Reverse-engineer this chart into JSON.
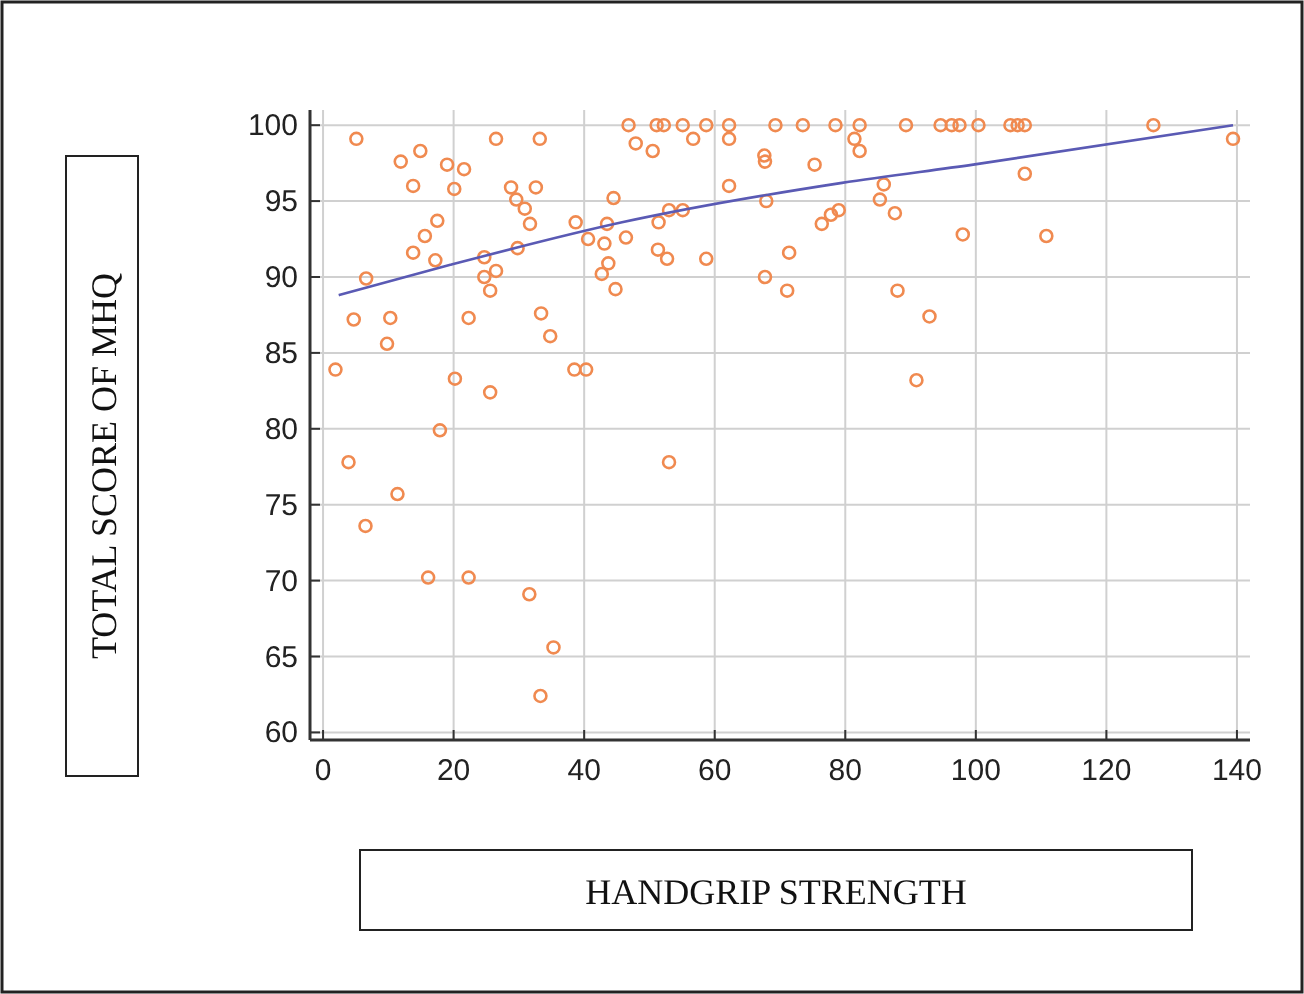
{
  "chart_data": {
    "type": "scatter",
    "xlabel": "HANDGRIP STRENGTH",
    "ylabel": "TOTAL SCORE OF MHQ",
    "xlim": [
      -2,
      142
    ],
    "ylim": [
      59.5,
      101
    ],
    "xticks": [
      0,
      20,
      40,
      60,
      80,
      100,
      120,
      140
    ],
    "yticks": [
      60,
      65,
      70,
      75,
      80,
      85,
      90,
      95,
      100
    ],
    "grid": true,
    "series": [
      {
        "marker": "circle",
        "color": "#f08a50",
        "x": [
          5.1,
          11.9,
          14.9,
          19.0,
          21.6,
          13.8,
          20.1,
          26.5,
          33.2,
          46.8,
          47.9,
          28.8,
          29.6,
          30.9,
          31.7,
          32.6,
          44.5,
          17.5,
          15.6,
          13.8,
          17.2,
          6.6,
          24.7,
          24.7,
          26.5,
          25.6,
          29.8,
          38.7,
          40.6,
          43.5,
          43.1,
          46.4,
          43.7,
          42.7,
          44.8,
          4.7,
          10.3,
          9.8,
          22.3,
          33.4,
          34.8,
          1.9,
          20.2,
          25.6,
          38.5,
          40.3,
          17.9,
          3.9,
          11.4,
          6.5,
          16.1,
          22.3,
          31.6,
          35.3,
          33.3,
          53.0,
          51.1,
          52.2,
          55.1,
          58.7,
          62.2,
          69.3,
          73.5,
          78.5,
          82.2,
          89.3,
          94.6,
          96.3,
          97.5,
          50.5,
          56.7,
          62.2,
          81.4,
          82.2,
          67.6,
          67.7,
          75.3,
          62.2,
          85.9,
          85.3,
          67.9,
          53.0,
          55.1,
          51.4,
          76.4,
          77.8,
          79.0,
          87.6,
          51.3,
          52.7,
          58.7,
          71.4,
          98.0,
          67.7,
          71.1,
          88.0,
          92.9,
          90.9,
          100.4,
          105.3,
          106.4,
          107.5,
          127.2,
          139.4,
          107.5,
          110.8
        ],
        "values": [
          99.1,
          97.6,
          98.3,
          97.4,
          97.1,
          96.0,
          95.8,
          99.1,
          99.1,
          100,
          98.8,
          95.9,
          95.1,
          94.5,
          93.5,
          95.9,
          95.2,
          93.7,
          92.7,
          91.6,
          91.1,
          89.9,
          91.3,
          90.0,
          90.4,
          89.1,
          91.9,
          93.6,
          92.5,
          93.5,
          92.2,
          92.6,
          90.9,
          90.2,
          89.2,
          87.2,
          87.3,
          85.6,
          87.3,
          87.6,
          86.1,
          83.9,
          83.3,
          82.4,
          83.9,
          83.9,
          79.9,
          77.8,
          75.7,
          73.6,
          70.2,
          70.2,
          69.1,
          65.6,
          62.4,
          77.8,
          100,
          100,
          100,
          100,
          100,
          100,
          100,
          100,
          100,
          100,
          100,
          100,
          100,
          98.3,
          99.1,
          99.1,
          99.1,
          98.3,
          98.0,
          97.6,
          97.4,
          96.0,
          96.1,
          95.1,
          95.0,
          94.4,
          94.4,
          93.6,
          93.5,
          94.1,
          94.4,
          94.2,
          91.8,
          91.2,
          91.2,
          91.6,
          92.8,
          90.0,
          89.1,
          89.1,
          87.4,
          83.2,
          100,
          100,
          100,
          100,
          100,
          99.1,
          96.8,
          92.7
        ]
      },
      {
        "type": "line",
        "color": "#5a5ab4",
        "x": [
          2.4,
          19.5,
          45.8,
          79.5,
          99.6,
          139.4
        ],
        "values": [
          88.8,
          90.8,
          93.6,
          96.2,
          97.4,
          100
        ]
      }
    ]
  }
}
